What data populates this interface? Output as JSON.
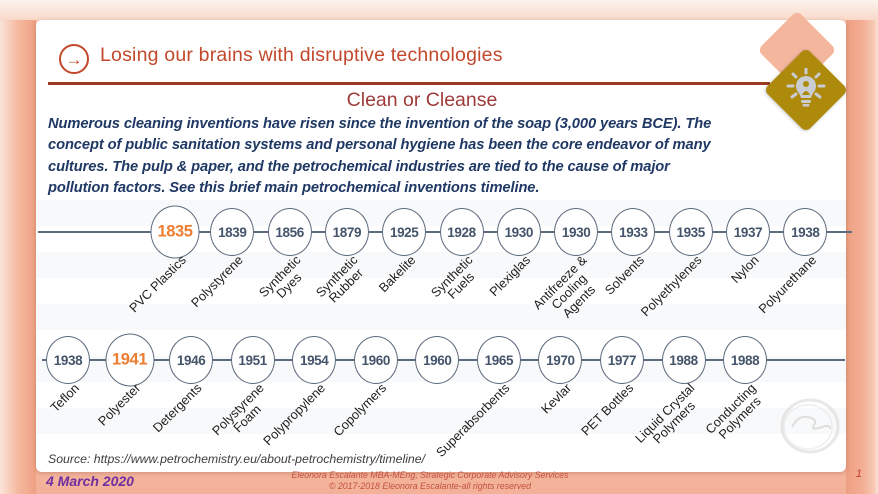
{
  "header": {
    "title": "Losing our brains with disruptive technologies",
    "icon": "arrow-right-circle-icon",
    "badge_icon": "lightbulb-icon"
  },
  "subtitle": "Clean or Cleanse",
  "intro_lines": [
    "Numerous cleaning inventions have risen since the invention of the soap (3,000 years BCE). The",
    "concept of public sanitation systems and personal hygiene has been the core endeavor of many",
    "cultures. The pulp & paper, and the petrochemical industries are tied to the cause of major",
    "pollution factors. See this brief main petrochemical inventions timeline."
  ],
  "chart_data": {
    "type": "timeline",
    "rows": [
      {
        "items": [
          {
            "year": "1835",
            "label": "PVC Plastics",
            "highlight": true
          },
          {
            "year": "1839",
            "label": "Polystyrene",
            "highlight": false
          },
          {
            "year": "1856",
            "label": "Synthetic\nDyes",
            "highlight": false
          },
          {
            "year": "1879",
            "label": "Synthetic\nRubber",
            "highlight": false
          },
          {
            "year": "1925",
            "label": "Bakelite",
            "highlight": false
          },
          {
            "year": "1928",
            "label": "Synthetic\nFuels",
            "highlight": false
          },
          {
            "year": "1930",
            "label": "Plexiglas",
            "highlight": false
          },
          {
            "year": "1930",
            "label": "Antifreeze &\nCooling\nAgents",
            "highlight": false
          },
          {
            "year": "1933",
            "label": "Solvents",
            "highlight": false
          },
          {
            "year": "1935",
            "label": "Polyethylenes",
            "highlight": false
          },
          {
            "year": "1937",
            "label": "Nylon",
            "highlight": false
          },
          {
            "year": "1938",
            "label": "Polyurethane",
            "highlight": false
          }
        ]
      },
      {
        "items": [
          {
            "year": "1938",
            "label": "Teflon",
            "highlight": false
          },
          {
            "year": "1941",
            "label": "Polyester",
            "highlight": true
          },
          {
            "year": "1946",
            "label": "Detergents",
            "highlight": false
          },
          {
            "year": "1951",
            "label": "Polystyrene\nFoam",
            "highlight": false
          },
          {
            "year": "1954",
            "label": "Polypropylene",
            "highlight": false
          },
          {
            "year": "1960",
            "label": "Copolymers",
            "highlight": false
          },
          {
            "year": "1960",
            "label": "",
            "highlight": false
          },
          {
            "year": "1965",
            "label": "Superabsorbents",
            "highlight": false
          },
          {
            "year": "1970",
            "label": "Kevlar",
            "highlight": false
          },
          {
            "year": "1977",
            "label": "PET Bottles",
            "highlight": false
          },
          {
            "year": "1988",
            "label": "Liquid Crystal\nPolymers",
            "highlight": false
          },
          {
            "year": "1988",
            "label": "Conducting\nPolymers",
            "highlight": false
          }
        ]
      }
    ]
  },
  "footer": {
    "source": "Source: https://www.petrochemistry.eu/about-petrochemistry/timeline/",
    "date": "4 March 2020",
    "line1": "Eleonora Escalante MBA-MEng, Strategic Corporate Advisory Services",
    "line2": "© 2017-2018 Eleonora Escalante-all rights reserved",
    "page_number": "1",
    "watermark_icon": "signature-watermark"
  },
  "colors": {
    "accent_red": "#c2492c",
    "subtitle_red": "#9e3b3a",
    "intro_navy": "#1f3864",
    "timeline_slate": "#5d6b7e",
    "year_slate": "#44546a",
    "highlight_orange": "#ed7d31",
    "diamond_pink": "#f4b69d",
    "diamond_gold": "#ae8a0c",
    "salmon_bg": "#f2ab8e",
    "footer_red": "#c35240",
    "date_purple": "#6f2fa0"
  }
}
